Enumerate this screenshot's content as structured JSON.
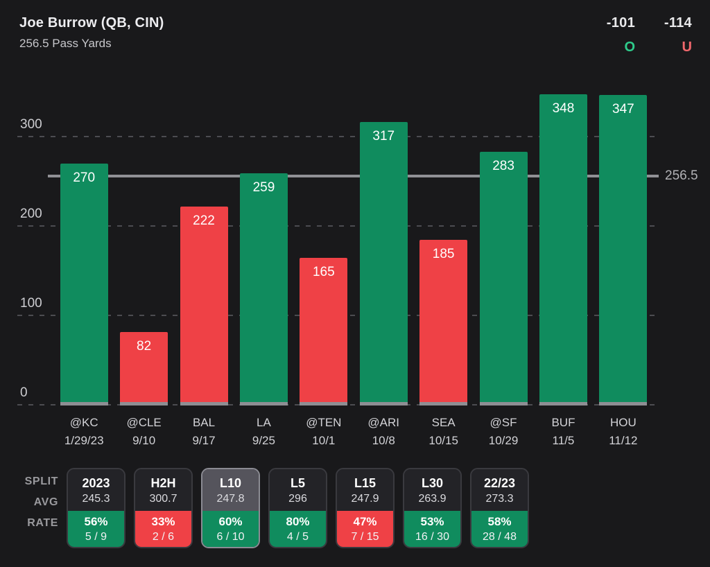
{
  "header": {
    "player": "Joe Burrow (QB, CIN)",
    "prop": "256.5 Pass Yards",
    "over": {
      "odds": "-101",
      "label": "O"
    },
    "under": {
      "odds": "-114",
      "label": "U"
    }
  },
  "chart_data": {
    "type": "bar",
    "title": "Joe Burrow pass yards by game vs 256.5 line",
    "ylabel": "Pass Yards",
    "ylim": [
      0,
      360
    ],
    "yticks": [
      0,
      100,
      200,
      300
    ],
    "grid": "dashed horizontal",
    "threshold": 256.5,
    "threshold_label": "256.5",
    "categories": [
      "@KC",
      "@CLE",
      "BAL",
      "LA",
      "@TEN",
      "@ARI",
      "SEA",
      "@SF",
      "BUF",
      "HOU"
    ],
    "values": [
      270,
      82,
      222,
      259,
      165,
      317,
      185,
      283,
      348,
      347
    ],
    "games": [
      {
        "opponent": "@KC",
        "date": "1/29/23",
        "value": 270,
        "over": true
      },
      {
        "opponent": "@CLE",
        "date": "9/10",
        "value": 82,
        "over": false
      },
      {
        "opponent": "BAL",
        "date": "9/17",
        "value": 222,
        "over": false
      },
      {
        "opponent": "LA",
        "date": "9/25",
        "value": 259,
        "over": true
      },
      {
        "opponent": "@TEN",
        "date": "10/1",
        "value": 165,
        "over": false
      },
      {
        "opponent": "@ARI",
        "date": "10/8",
        "value": 317,
        "over": true
      },
      {
        "opponent": "SEA",
        "date": "10/15",
        "value": 185,
        "over": false
      },
      {
        "opponent": "@SF",
        "date": "10/29",
        "value": 283,
        "over": true
      },
      {
        "opponent": "BUF",
        "date": "11/5",
        "value": 348,
        "over": true
      },
      {
        "opponent": "HOU",
        "date": "11/12",
        "value": 347,
        "over": true
      }
    ]
  },
  "splits": {
    "row_labels": [
      "SPLIT",
      "AVG",
      "RATE"
    ],
    "columns": [
      {
        "label": "2023",
        "avg": "245.3",
        "rate_pct": "56%",
        "rate_frac": "5 / 9",
        "over": true,
        "selected": false
      },
      {
        "label": "H2H",
        "avg": "300.7",
        "rate_pct": "33%",
        "rate_frac": "2 / 6",
        "over": false,
        "selected": false
      },
      {
        "label": "L10",
        "avg": "247.8",
        "rate_pct": "60%",
        "rate_frac": "6 / 10",
        "over": true,
        "selected": true
      },
      {
        "label": "L5",
        "avg": "296",
        "rate_pct": "80%",
        "rate_frac": "4 / 5",
        "over": true,
        "selected": false
      },
      {
        "label": "L15",
        "avg": "247.9",
        "rate_pct": "47%",
        "rate_frac": "7 / 15",
        "over": false,
        "selected": false
      },
      {
        "label": "L30",
        "avg": "263.9",
        "rate_pct": "53%",
        "rate_frac": "16 / 30",
        "over": true,
        "selected": false
      },
      {
        "label": "22/23",
        "avg": "273.3",
        "rate_pct": "58%",
        "rate_frac": "28 / 48",
        "over": true,
        "selected": false
      }
    ]
  },
  "colors": {
    "background": "#19191b",
    "over_green": "#108c5e",
    "under_red": "#ef4146",
    "over_text": "#2ecb8b",
    "under_text": "#f2686d",
    "threshold_line": "#909095",
    "bar_base": "#8e8e93"
  }
}
